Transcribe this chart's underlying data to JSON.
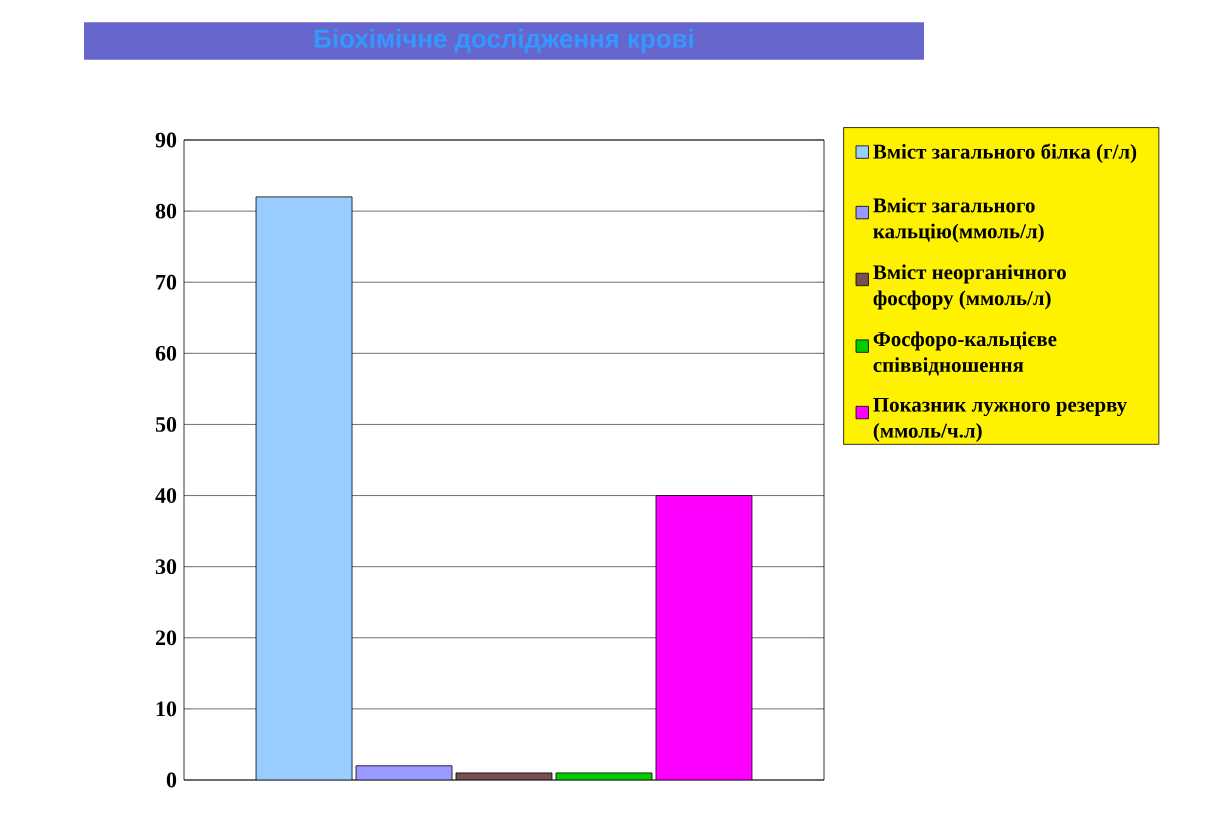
{
  "chart_data": {
    "type": "bar",
    "title": "Біохімічне дослідження крові",
    "categories": [
      null
    ],
    "series": [
      {
        "name": "Вміст загального білка (г/л)",
        "color": "#99ccff",
        "values": [
          82
        ]
      },
      {
        "name": "Вміст загального кальцію(ммоль/л)",
        "color": "#9999ff",
        "values": [
          2
        ]
      },
      {
        "name": "Вміст неорганічного фосфору (ммоль/л)",
        "color": "#774f4f",
        "values": [
          1
        ]
      },
      {
        "name": "Фосфоро-кальцієве співвідношення",
        "color": "#00cc00",
        "values": [
          1
        ]
      },
      {
        "name": "Показник лужного резерву (ммоль/ч.л)",
        "color": "#ff00ff",
        "values": [
          40
        ]
      }
    ],
    "ylim": [
      0,
      90
    ],
    "yticks": [
      0,
      10,
      20,
      30,
      40,
      50,
      60,
      70,
      80,
      90
    ],
    "grid": "y",
    "legend": "right"
  }
}
